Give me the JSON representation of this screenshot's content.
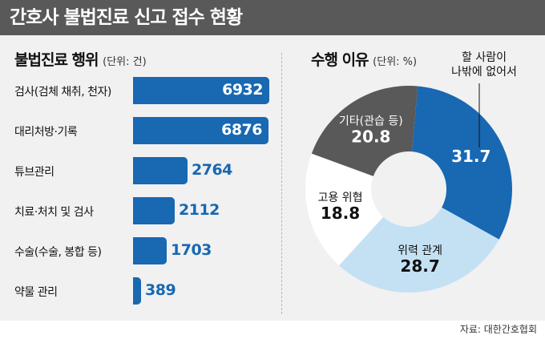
{
  "header": {
    "title": "간호사 불법진료 신고 접수 현황"
  },
  "source": "자료: 대한간호협회",
  "colors": {
    "header_bg": "#595959",
    "panel_bg": "#f1f1f1",
    "bar": "#1868b2",
    "slice_dark_blue": "#1868b2",
    "slice_light_blue": "#c4e1f4",
    "slice_white": "#ffffff",
    "slice_gray": "#595959"
  },
  "chart_data": [
    {
      "type": "bar",
      "orientation": "horizontal",
      "title": "불법진료 행위",
      "unit_note": "(단위: 건)",
      "categories": [
        "검사(검체 채취, 천자)",
        "대리처방·기록",
        "튜브관리",
        "치료·처치 및 검사",
        "수술(수술, 봉합 등)",
        "약물 관리"
      ],
      "values": [
        6932,
        6876,
        2764,
        2112,
        1703,
        389
      ],
      "value_labels": [
        "6932",
        "6876",
        "2764",
        "2112",
        "1703",
        "389"
      ]
    },
    {
      "type": "pie",
      "donut": true,
      "title": "수행 이유",
      "unit_note": "(단위: %)",
      "slices": [
        {
          "label": [
            "할 사람이",
            "나밖에 없어서"
          ],
          "value": 31.7,
          "value_label": "31.7",
          "color": "#1868b2",
          "text_color": "#ffffff"
        },
        {
          "label": [
            "위력 관계"
          ],
          "value": 28.7,
          "value_label": "28.7",
          "color": "#c4e1f4",
          "text_color": "#111111"
        },
        {
          "label": [
            "고용 위협"
          ],
          "value": 18.8,
          "value_label": "18.8",
          "color": "#ffffff",
          "text_color": "#111111"
        },
        {
          "label": [
            "기타(관습 등)"
          ],
          "value": 20.8,
          "value_label": "20.8",
          "color": "#595959",
          "text_color": "#ffffff"
        }
      ]
    }
  ]
}
